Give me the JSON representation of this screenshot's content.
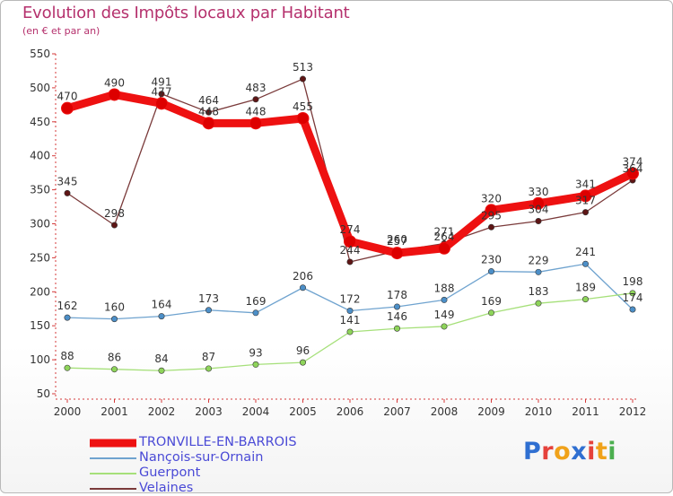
{
  "title": "Evolution des Impôts locaux par Habitant",
  "subtitle": "(en € et par an)",
  "brand": {
    "name": "Proxiti",
    "letters": [
      "P",
      "r",
      "o",
      "x",
      "i",
      "t",
      "i"
    ],
    "colors": [
      "#2f6fd1",
      "#e5423b",
      "#f0a21a",
      "#2f6fd1",
      "#e5423b",
      "#f0a21a",
      "#4caf50"
    ]
  },
  "chart_data": {
    "type": "line",
    "title": "Evolution des Impôts locaux par Habitant",
    "ylabel": "(en € et par an)",
    "x": [
      "2000",
      "2001",
      "2002",
      "2003",
      "2004",
      "2005",
      "2006",
      "2007",
      "2008",
      "2009",
      "2010",
      "2011",
      "2012"
    ],
    "ylim": [
      50,
      550
    ],
    "yticks": [
      50,
      100,
      150,
      200,
      250,
      300,
      350,
      400,
      450,
      500,
      550
    ],
    "grid": false,
    "series": [
      {
        "name": "TRONVILLE-EN-BARROIS",
        "color": "#ee1111",
        "marker": "#dd0000",
        "values": [
          470,
          490,
          477,
          448,
          448,
          455,
          274,
          257,
          264,
          320,
          330,
          341,
          374
        ],
        "labels": [
          "470",
          "490",
          "477",
          "448",
          "448",
          "455",
          "274",
          "257",
          "264",
          "320",
          "330",
          "341",
          "374"
        ]
      },
      {
        "name": "Nançois-sur-Ornain",
        "color": "#6fa3cf",
        "marker": "#4c8fc8",
        "values": [
          162,
          160,
          164,
          173,
          169,
          206,
          172,
          178,
          188,
          230,
          229,
          241,
          174
        ],
        "labels": [
          "162",
          "160",
          "164",
          "173",
          "169",
          "206",
          "172",
          "178",
          "188",
          "230",
          "229",
          "241",
          "174"
        ]
      },
      {
        "name": "Guerpont",
        "color": "#a6e07a",
        "marker": "#8ed45a",
        "values": [
          88,
          86,
          84,
          87,
          93,
          96,
          141,
          146,
          149,
          169,
          183,
          189,
          198
        ],
        "labels": [
          "88",
          "86",
          "84",
          "87",
          "93",
          "96",
          "141",
          "146",
          "149",
          "169",
          "183",
          "189",
          "198"
        ]
      },
      {
        "name": "Velaines",
        "color": "#7a3a3a",
        "marker": "#5e1515",
        "values": [
          345,
          298,
          491,
          464,
          483,
          513,
          244,
          260,
          271,
          295,
          304,
          317,
          364
        ],
        "labels": [
          "345",
          "298",
          "491",
          "464",
          "483",
          "513",
          "244",
          "260",
          "271",
          "295",
          "304",
          "317",
          "364"
        ]
      }
    ]
  }
}
